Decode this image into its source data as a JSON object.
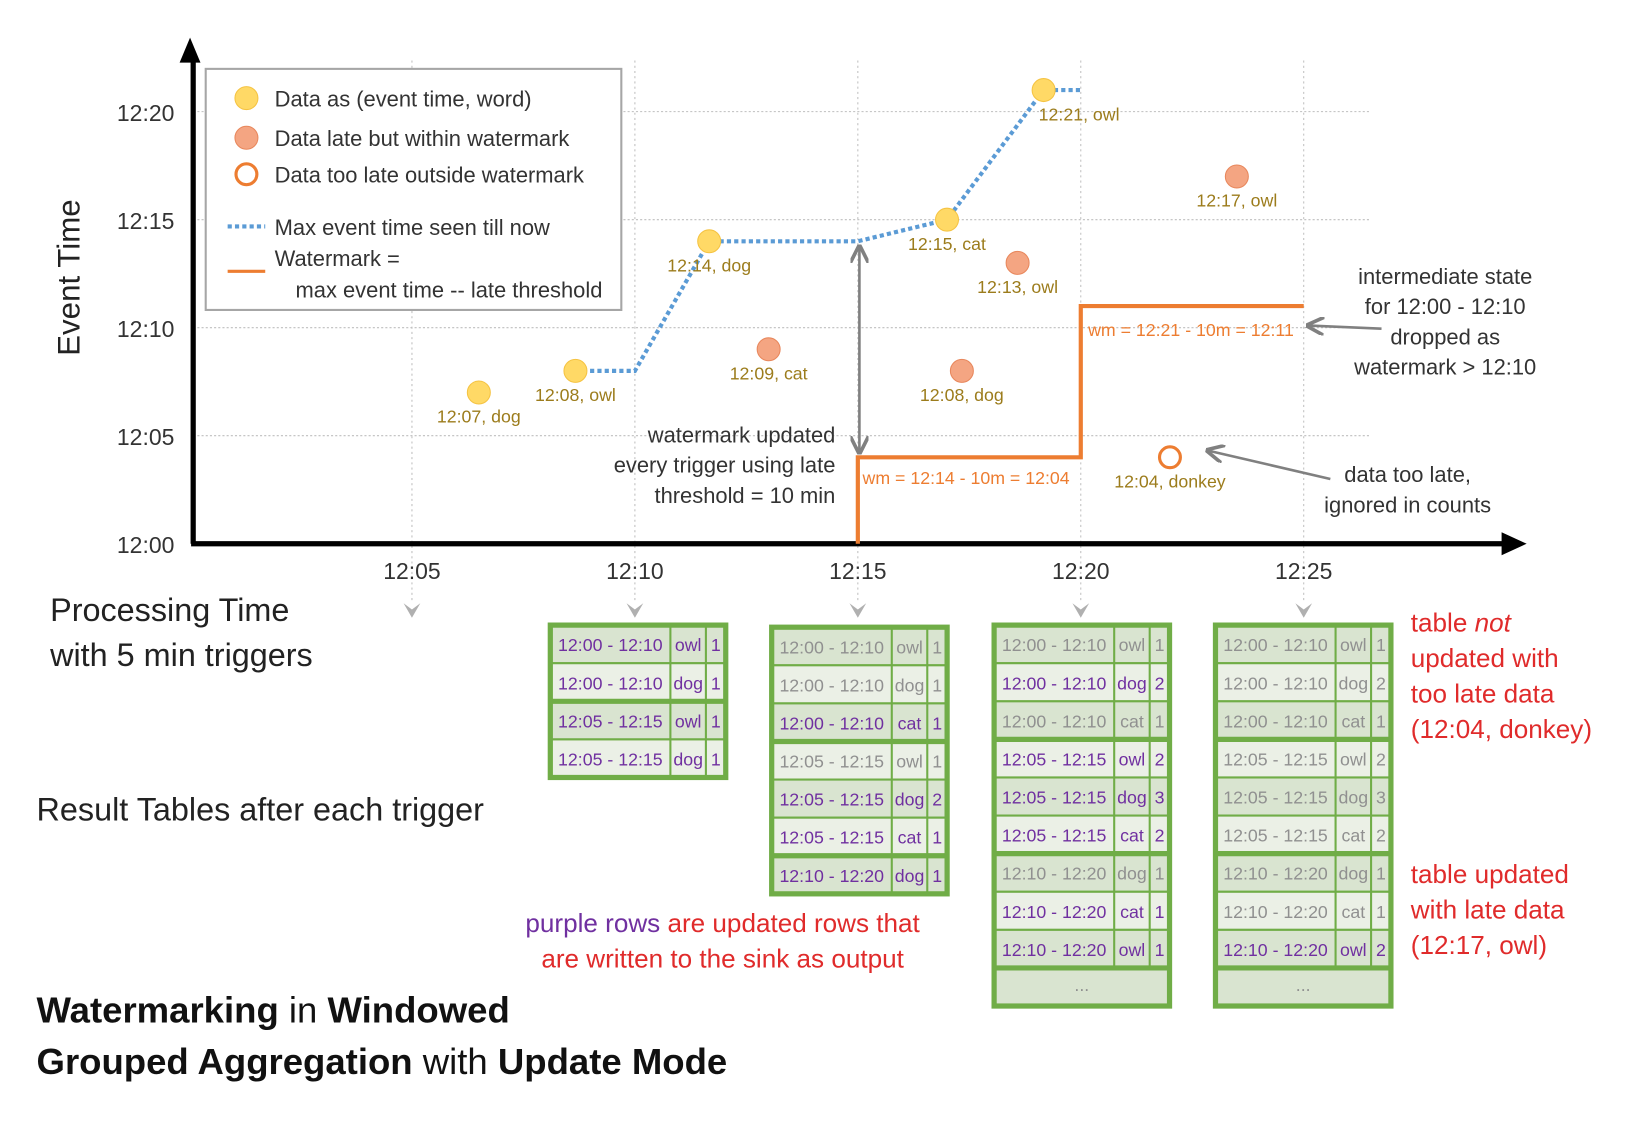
{
  "colors": {
    "axis": "#000000",
    "grid": "#bfbfbf",
    "data_point": "#ffd966",
    "data_point_stroke": "#f5c342",
    "late_point": "#f4a582",
    "late_point_stroke": "#e8875c",
    "too_late_stroke": "#ed7d31",
    "max_event_line": "#5b9bd5",
    "watermark_line": "#ed7d31",
    "point_label": "#9c7c1c",
    "watermark_label": "#ed7d31",
    "annotation": "#333333",
    "arrow": "#808080",
    "table_border": "#70ad47",
    "row_fill_a": "#d9e4d0",
    "row_fill_b": "#ebf0e6",
    "updated_text": "#7030a0",
    "stale_text": "#909090",
    "note_red": "#e02b2b"
  },
  "chart": {
    "y_axis_label": "Event Time",
    "x_axis_label": [
      "Processing Time",
      "with 5 min triggers"
    ],
    "y_ticks": [
      "12:00",
      "12:05",
      "12:10",
      "12:15",
      "12:20"
    ],
    "x_ticks": [
      "12:05",
      "12:10",
      "12:15",
      "12:20",
      "12:25"
    ],
    "legend": [
      {
        "marker": "data-point",
        "label": "Data as (event time, word)"
      },
      {
        "marker": "late-point",
        "label": "Data late but within watermark"
      },
      {
        "marker": "too-late-point",
        "label": "Data too late outside watermark"
      },
      {
        "marker": "max-event-line",
        "label": "Max event time seen till now"
      },
      {
        "marker": "watermark-line",
        "label": "Watermark =",
        "label2": "max event time -- late threshold"
      }
    ],
    "points": [
      {
        "kind": "data",
        "processing_time": "12:06:30",
        "event_time": "12:07",
        "label": "12:07, dog"
      },
      {
        "kind": "data",
        "processing_time": "12:08:40",
        "event_time": "12:08",
        "label": "12:08, owl"
      },
      {
        "kind": "data",
        "processing_time": "12:11:40",
        "event_time": "12:14",
        "label": "12:14, dog"
      },
      {
        "kind": "late",
        "processing_time": "12:13:00",
        "event_time": "12:09",
        "label": "12:09, cat"
      },
      {
        "kind": "data",
        "processing_time": "12:17:00",
        "event_time": "12:15",
        "label": "12:15, cat"
      },
      {
        "kind": "late",
        "processing_time": "12:17:20",
        "event_time": "12:08",
        "label": "12:08, dog"
      },
      {
        "kind": "late",
        "processing_time": "12:18:35",
        "event_time": "12:13",
        "label": "12:13, owl"
      },
      {
        "kind": "data",
        "processing_time": "12:19:10",
        "event_time": "12:21",
        "label": "12:21, owl"
      },
      {
        "kind": "too_late",
        "processing_time": "12:22:00",
        "event_time": "12:04",
        "label": "12:04, donkey"
      },
      {
        "kind": "late",
        "processing_time": "12:23:30",
        "event_time": "12:17",
        "label": "12:17, owl"
      }
    ],
    "max_event_time_line": [
      [
        "12:08:40",
        "12:08"
      ],
      [
        "12:10:00",
        "12:08"
      ],
      [
        "12:11:40",
        "12:14"
      ],
      [
        "12:15:00",
        "12:14"
      ],
      [
        "12:17:00",
        "12:15"
      ],
      [
        "12:19:10",
        "12:21"
      ],
      [
        "12:20:00",
        "12:21"
      ]
    ],
    "watermark_line": [
      [
        "12:15:00",
        "12:00"
      ],
      [
        "12:15:00",
        "12:04"
      ],
      [
        "12:20:00",
        "12:04"
      ],
      [
        "12:20:00",
        "12:11"
      ],
      [
        "12:25:00",
        "12:11"
      ]
    ],
    "watermark_labels": [
      "wm = 12:14 - 10m = 12:04",
      "wm = 12:21 - 10m = 12:11"
    ],
    "annotations": {
      "watermark_updated": [
        "watermark updated",
        "every trigger using late",
        "threshold = 10 min"
      ],
      "intermediate_state": [
        "intermediate state",
        "for 12:00 - 12:10",
        "dropped as",
        "watermark > 12:10"
      ],
      "too_late": [
        "data too late,",
        "ignored in counts"
      ]
    }
  },
  "result_tables_label": "Result Tables after each trigger",
  "tables": [
    {
      "trigger": "12:10",
      "rows": [
        {
          "window": "12:00 - 12:10",
          "word": "owl",
          "count": "1",
          "updated": true,
          "group_start": true
        },
        {
          "window": "12:00 - 12:10",
          "word": "dog",
          "count": "1",
          "updated": true
        },
        {
          "window": "12:05 - 12:15",
          "word": "owl",
          "count": "1",
          "updated": true,
          "group_start": true
        },
        {
          "window": "12:05 - 12:15",
          "word": "dog",
          "count": "1",
          "updated": true
        }
      ]
    },
    {
      "trigger": "12:15",
      "rows": [
        {
          "window": "12:00 - 12:10",
          "word": "owl",
          "count": "1",
          "updated": false,
          "group_start": true
        },
        {
          "window": "12:00 - 12:10",
          "word": "dog",
          "count": "1",
          "updated": false
        },
        {
          "window": "12:00 - 12:10",
          "word": "cat",
          "count": "1",
          "updated": true
        },
        {
          "window": "12:05 - 12:15",
          "word": "owl",
          "count": "1",
          "updated": false,
          "group_start": true
        },
        {
          "window": "12:05 - 12:15",
          "word": "dog",
          "count": "2",
          "updated": true
        },
        {
          "window": "12:05 - 12:15",
          "word": "cat",
          "count": "1",
          "updated": true
        },
        {
          "window": "12:10 - 12:20",
          "word": "dog",
          "count": "1",
          "updated": true,
          "group_start": true
        }
      ]
    },
    {
      "trigger": "12:20",
      "ellipsis": "...",
      "rows": [
        {
          "window": "12:00 - 12:10",
          "word": "owl",
          "count": "1",
          "updated": false,
          "group_start": true
        },
        {
          "window": "12:00 - 12:10",
          "word": "dog",
          "count": "2",
          "updated": true
        },
        {
          "window": "12:00 - 12:10",
          "word": "cat",
          "count": "1",
          "updated": false
        },
        {
          "window": "12:05 - 12:15",
          "word": "owl",
          "count": "2",
          "updated": true,
          "group_start": true
        },
        {
          "window": "12:05 - 12:15",
          "word": "dog",
          "count": "3",
          "updated": true
        },
        {
          "window": "12:05 - 12:15",
          "word": "cat",
          "count": "2",
          "updated": true
        },
        {
          "window": "12:10 - 12:20",
          "word": "dog",
          "count": "1",
          "updated": false,
          "group_start": true
        },
        {
          "window": "12:10 - 12:20",
          "word": "cat",
          "count": "1",
          "updated": true
        },
        {
          "window": "12:10 - 12:20",
          "word": "owl",
          "count": "1",
          "updated": true
        }
      ]
    },
    {
      "trigger": "12:25",
      "ellipsis": "...",
      "rows": [
        {
          "window": "12:00 - 12:10",
          "word": "owl",
          "count": "1",
          "updated": false,
          "group_start": true
        },
        {
          "window": "12:00 - 12:10",
          "word": "dog",
          "count": "2",
          "updated": false
        },
        {
          "window": "12:00 - 12:10",
          "word": "cat",
          "count": "1",
          "updated": false
        },
        {
          "window": "12:05 - 12:15",
          "word": "owl",
          "count": "2",
          "updated": false,
          "group_start": true
        },
        {
          "window": "12:05 - 12:15",
          "word": "dog",
          "count": "3",
          "updated": false
        },
        {
          "window": "12:05 - 12:15",
          "word": "cat",
          "count": "2",
          "updated": false
        },
        {
          "window": "12:10 - 12:20",
          "word": "dog",
          "count": "1",
          "updated": false,
          "group_start": true
        },
        {
          "window": "12:10 - 12:20",
          "word": "cat",
          "count": "1",
          "updated": false
        },
        {
          "window": "12:10 - 12:20",
          "word": "owl",
          "count": "2",
          "updated": true
        }
      ]
    }
  ],
  "notes": {
    "not_updated": [
      [
        {
          "t": "table "
        },
        {
          "t": "not",
          "i": true
        }
      ],
      [
        {
          "t": "updated with"
        }
      ],
      [
        {
          "t": "too late data"
        }
      ],
      [
        {
          "t": "(12:04, donkey)"
        }
      ]
    ],
    "updated": [
      "table updated",
      "with late data",
      "(12:17, owl)"
    ],
    "purple_caption": {
      "line1_purple": "purple rows",
      "line1_rest": " are updated rows that",
      "line2": "are written to the sink as output"
    }
  },
  "title": [
    [
      {
        "t": "Watermarking",
        "b": true
      },
      {
        "t": " in "
      },
      {
        "t": "Windowed",
        "b": true
      }
    ],
    [
      {
        "t": "Grouped Aggregation",
        "b": true
      },
      {
        "t": " with "
      },
      {
        "t": "Update Mode",
        "b": true
      }
    ]
  ]
}
